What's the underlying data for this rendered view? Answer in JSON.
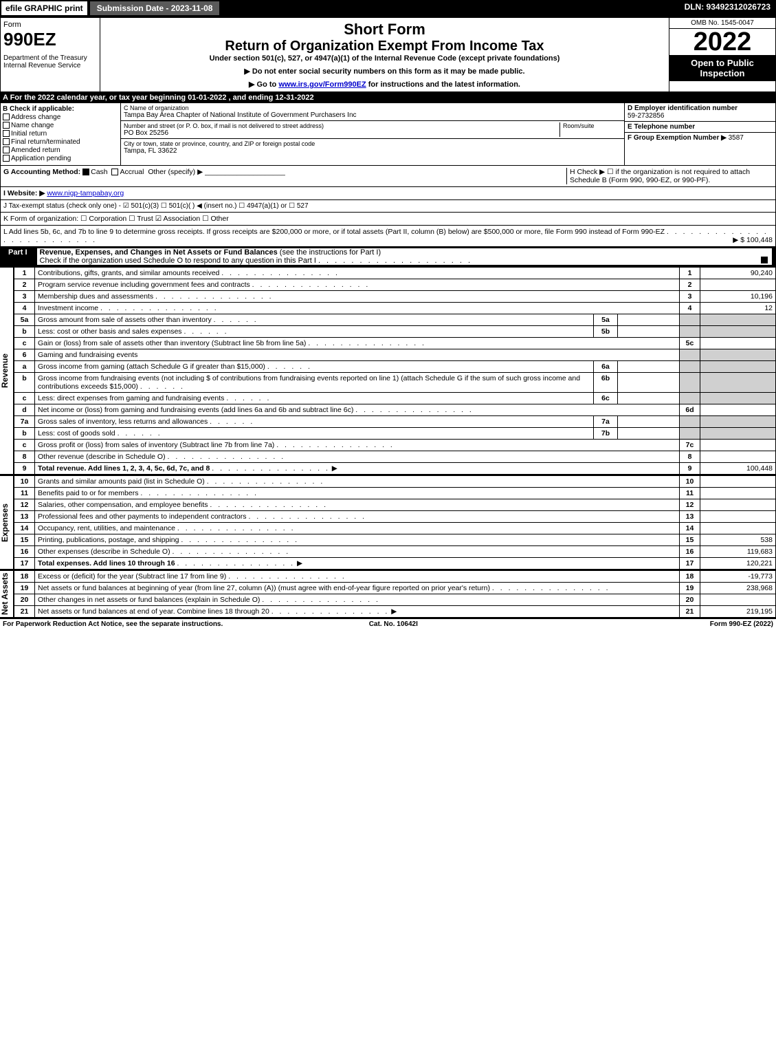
{
  "topbar": {
    "efile": "efile GRAPHIC print",
    "submission": "Submission Date - 2023-11-08",
    "dln": "DLN: 93492312026723"
  },
  "header": {
    "form_label": "Form",
    "form_number": "990EZ",
    "dept1": "Department of the Treasury",
    "dept2": "Internal Revenue Service",
    "short_form": "Short Form",
    "title": "Return of Organization Exempt From Income Tax",
    "subtitle": "Under section 501(c), 527, or 4947(a)(1) of the Internal Revenue Code (except private foundations)",
    "inst1": "▶ Do not enter social security numbers on this form as it may be made public.",
    "inst2_pre": "▶ Go to ",
    "inst2_link": "www.irs.gov/Form990EZ",
    "inst2_post": " for instructions and the latest information.",
    "omb": "OMB No. 1545-0047",
    "year": "2022",
    "open": "Open to Public Inspection"
  },
  "line_a": "A  For the 2022 calendar year, or tax year beginning 01-01-2022 , and ending 12-31-2022",
  "section_b": {
    "header": "B  Check if applicable:",
    "items": [
      "Address change",
      "Name change",
      "Initial return",
      "Final return/terminated",
      "Amended return",
      "Application pending"
    ]
  },
  "section_c": {
    "name_lbl": "C Name of organization",
    "name": "Tampa Bay Area Chapter of National Institute of Government Purchasers Inc",
    "street_lbl": "Number and street (or P. O. box, if mail is not delivered to street address)",
    "room_lbl": "Room/suite",
    "street": "PO Box 25256",
    "city_lbl": "City or town, state or province, country, and ZIP or foreign postal code",
    "city": "Tampa, FL  33622"
  },
  "section_d": {
    "ein_lbl": "D Employer identification number",
    "ein": "59-2732856",
    "phone_lbl": "E Telephone number",
    "group_lbl": "F Group Exemption Number  ▶",
    "group": "3587"
  },
  "line_g": {
    "label": "G Accounting Method:",
    "cash": "Cash",
    "accrual": "Accrual",
    "other": "Other (specify) ▶"
  },
  "line_h": {
    "text": "H  Check ▶  ☐  if the organization is not required to attach Schedule B (Form 990, 990-EZ, or 990-PF)."
  },
  "line_i": {
    "label": "I Website: ▶",
    "url": "www.nigp-tampabay.org"
  },
  "line_j": "J Tax-exempt status (check only one) - ☑ 501(c)(3) ☐ 501(c)(  ) ◀ (insert no.) ☐ 4947(a)(1) or ☐ 527",
  "line_k": "K Form of organization:  ☐ Corporation  ☐ Trust  ☑ Association  ☐ Other",
  "line_l": {
    "text": "L Add lines 5b, 6c, and 7b to line 9 to determine gross receipts. If gross receipts are $200,000 or more, or if total assets (Part II, column (B) below) are $500,000 or more, file Form 990 instead of Form 990-EZ",
    "amount": "▶ $ 100,448"
  },
  "part1": {
    "label": "Part I",
    "title": "Revenue, Expenses, and Changes in Net Assets or Fund Balances",
    "subtitle": " (see the instructions for Part I)",
    "check": "Check if the organization used Schedule O to respond to any question in this Part I"
  },
  "sections": {
    "revenue": "Revenue",
    "expenses": "Expenses",
    "netassets": "Net Assets"
  },
  "rows": [
    {
      "n": "1",
      "d": "Contributions, gifts, grants, and similar amounts received",
      "ln": "1",
      "amt": "90,240"
    },
    {
      "n": "2",
      "d": "Program service revenue including government fees and contracts",
      "ln": "2",
      "amt": ""
    },
    {
      "n": "3",
      "d": "Membership dues and assessments",
      "ln": "3",
      "amt": "10,196"
    },
    {
      "n": "4",
      "d": "Investment income",
      "ln": "4",
      "amt": "12"
    },
    {
      "n": "5a",
      "d": "Gross amount from sale of assets other than inventory",
      "sub": "5a",
      "subamt": ""
    },
    {
      "n": "b",
      "d": "Less: cost or other basis and sales expenses",
      "sub": "5b",
      "subamt": ""
    },
    {
      "n": "c",
      "d": "Gain or (loss) from sale of assets other than inventory (Subtract line 5b from line 5a)",
      "ln": "5c",
      "amt": ""
    },
    {
      "n": "6",
      "d": "Gaming and fundraising events"
    },
    {
      "n": "a",
      "d": "Gross income from gaming (attach Schedule G if greater than $15,000)",
      "sub": "6a",
      "subamt": ""
    },
    {
      "n": "b",
      "d": "Gross income from fundraising events (not including $                    of contributions from fundraising events reported on line 1) (attach Schedule G if the sum of such gross income and contributions exceeds $15,000)",
      "sub": "6b",
      "subamt": ""
    },
    {
      "n": "c",
      "d": "Less: direct expenses from gaming and fundraising events",
      "sub": "6c",
      "subamt": ""
    },
    {
      "n": "d",
      "d": "Net income or (loss) from gaming and fundraising events (add lines 6a and 6b and subtract line 6c)",
      "ln": "6d",
      "amt": ""
    },
    {
      "n": "7a",
      "d": "Gross sales of inventory, less returns and allowances",
      "sub": "7a",
      "subamt": ""
    },
    {
      "n": "b",
      "d": "Less: cost of goods sold",
      "sub": "7b",
      "subamt": ""
    },
    {
      "n": "c",
      "d": "Gross profit or (loss) from sales of inventory (Subtract line 7b from line 7a)",
      "ln": "7c",
      "amt": ""
    },
    {
      "n": "8",
      "d": "Other revenue (describe in Schedule O)",
      "ln": "8",
      "amt": ""
    },
    {
      "n": "9",
      "d": "Total revenue. Add lines 1, 2, 3, 4, 5c, 6d, 7c, and 8",
      "ln": "9",
      "amt": "100,448",
      "bold": true,
      "arrow": true
    }
  ],
  "exp_rows": [
    {
      "n": "10",
      "d": "Grants and similar amounts paid (list in Schedule O)",
      "ln": "10",
      "amt": ""
    },
    {
      "n": "11",
      "d": "Benefits paid to or for members",
      "ln": "11",
      "amt": ""
    },
    {
      "n": "12",
      "d": "Salaries, other compensation, and employee benefits",
      "ln": "12",
      "amt": ""
    },
    {
      "n": "13",
      "d": "Professional fees and other payments to independent contractors",
      "ln": "13",
      "amt": ""
    },
    {
      "n": "14",
      "d": "Occupancy, rent, utilities, and maintenance",
      "ln": "14",
      "amt": ""
    },
    {
      "n": "15",
      "d": "Printing, publications, postage, and shipping",
      "ln": "15",
      "amt": "538"
    },
    {
      "n": "16",
      "d": "Other expenses (describe in Schedule O)",
      "ln": "16",
      "amt": "119,683"
    },
    {
      "n": "17",
      "d": "Total expenses. Add lines 10 through 16",
      "ln": "17",
      "amt": "120,221",
      "bold": true,
      "arrow": true
    }
  ],
  "na_rows": [
    {
      "n": "18",
      "d": "Excess or (deficit) for the year (Subtract line 17 from line 9)",
      "ln": "18",
      "amt": "-19,773"
    },
    {
      "n": "19",
      "d": "Net assets or fund balances at beginning of year (from line 27, column (A)) (must agree with end-of-year figure reported on prior year's return)",
      "ln": "19",
      "amt": "238,968"
    },
    {
      "n": "20",
      "d": "Other changes in net assets or fund balances (explain in Schedule O)",
      "ln": "20",
      "amt": ""
    },
    {
      "n": "21",
      "d": "Net assets or fund balances at end of year. Combine lines 18 through 20",
      "ln": "21",
      "amt": "219,195",
      "arrow": true
    }
  ],
  "footer": {
    "left": "For Paperwork Reduction Act Notice, see the separate instructions.",
    "mid": "Cat. No. 10642I",
    "right": "Form 990-EZ (2022)"
  }
}
